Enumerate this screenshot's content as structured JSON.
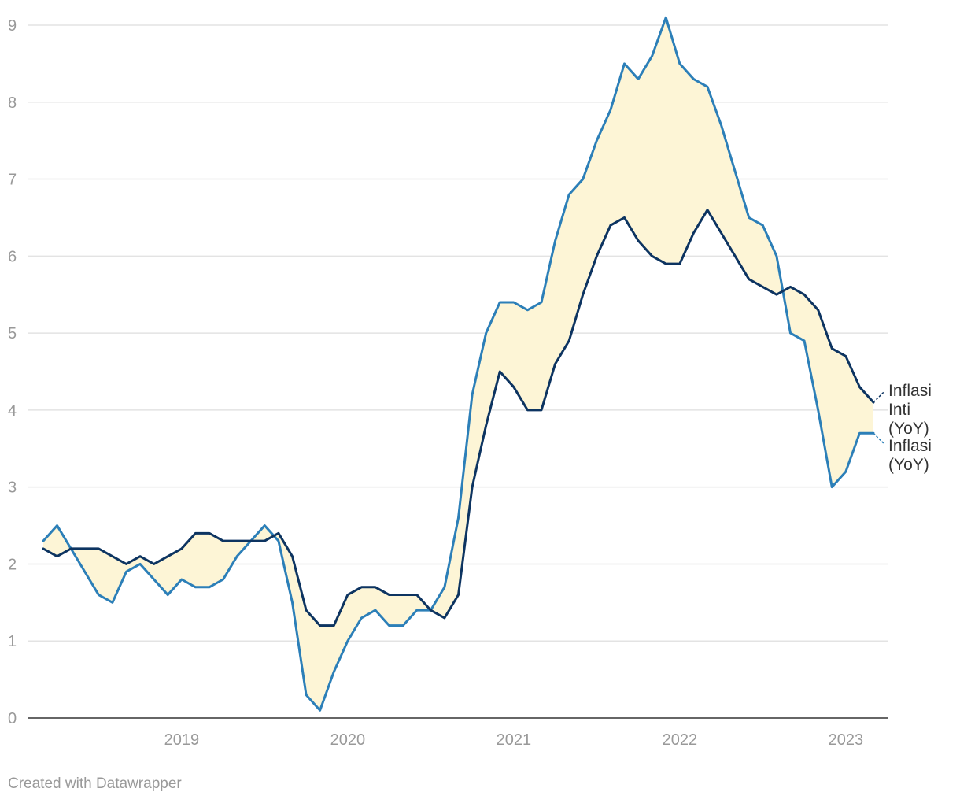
{
  "chart_data": {
    "type": "line",
    "title": "",
    "xlabel": "",
    "ylabel": "",
    "x_start": "2018-09",
    "x_end": "2023-09",
    "x_ticks": [
      "2019",
      "2020",
      "2021",
      "2022",
      "2023"
    ],
    "ylim": [
      0,
      9
    ],
    "y_ticks": [
      "0",
      "1",
      "2",
      "3",
      "4",
      "5",
      "6",
      "7",
      "8",
      "9"
    ],
    "grid": true,
    "range_fill_color": "#fdf5d6",
    "series": [
      {
        "name": "Inflasi Inti (YoY)",
        "color": "#0d3461",
        "values": [
          2.2,
          2.1,
          2.2,
          2.2,
          2.2,
          2.1,
          2.0,
          2.1,
          2.0,
          2.1,
          2.2,
          2.4,
          2.4,
          2.3,
          2.3,
          2.3,
          2.3,
          2.4,
          2.1,
          1.4,
          1.2,
          1.2,
          1.6,
          1.7,
          1.7,
          1.6,
          1.6,
          1.6,
          1.4,
          1.3,
          1.6,
          3.0,
          3.8,
          4.5,
          4.3,
          4.0,
          4.0,
          4.6,
          4.9,
          5.5,
          6.0,
          6.4,
          6.5,
          6.2,
          6.0,
          5.9,
          5.9,
          6.3,
          6.6,
          6.3,
          6.0,
          5.7,
          5.6,
          5.5,
          5.6,
          5.5,
          5.3,
          4.8,
          4.7,
          4.3,
          4.1
        ]
      },
      {
        "name": "Inflasi (YoY)",
        "color": "#2c7fb8",
        "values": [
          2.3,
          2.5,
          2.2,
          1.9,
          1.6,
          1.5,
          1.9,
          2.0,
          1.8,
          1.6,
          1.8,
          1.7,
          1.7,
          1.8,
          2.1,
          2.3,
          2.5,
          2.3,
          1.5,
          0.3,
          0.1,
          0.6,
          1.0,
          1.3,
          1.4,
          1.2,
          1.2,
          1.4,
          1.4,
          1.7,
          2.6,
          4.2,
          5.0,
          5.4,
          5.4,
          5.3,
          5.4,
          6.2,
          6.8,
          7.0,
          7.5,
          7.9,
          8.5,
          8.3,
          8.6,
          9.1,
          8.5,
          8.3,
          8.2,
          7.7,
          7.1,
          6.5,
          6.4,
          6.0,
          5.0,
          4.9,
          4.0,
          3.0,
          3.2,
          3.7,
          3.7
        ]
      }
    ],
    "labels": {
      "core": [
        "Inflasi",
        "Inti",
        "(YoY)"
      ],
      "headline": [
        "Inflasi",
        "(YoY)"
      ]
    }
  },
  "footer": "Created with Datawrapper"
}
